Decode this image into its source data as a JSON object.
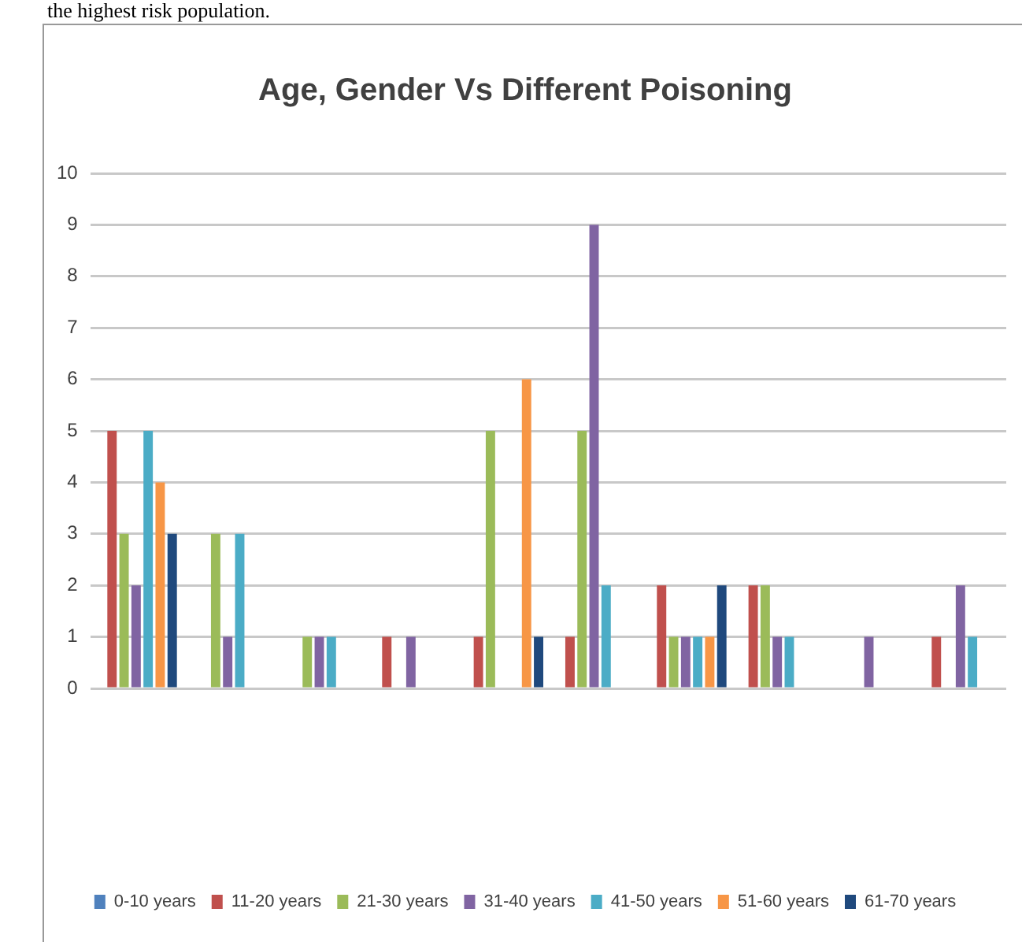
{
  "chart_data": {
    "type": "bar",
    "title": "Age, Gender Vs Different Poisoning",
    "annotations": [
      "the highest risk population."
    ],
    "categories": [
      null,
      null,
      null,
      null,
      null,
      null,
      null,
      null,
      null,
      null
    ],
    "series": [
      {
        "name": "0-10 years",
        "color": "#4f81bd",
        "values": [
          0,
          0,
          0,
          0,
          0,
          0,
          0,
          0,
          0,
          0
        ]
      },
      {
        "name": "11-20 years",
        "color": "#c0504d",
        "values": [
          5,
          0,
          0,
          1,
          1,
          1,
          2,
          2,
          0,
          1
        ]
      },
      {
        "name": "21-30 years",
        "color": "#9bbb59",
        "values": [
          3,
          3,
          1,
          0,
          5,
          5,
          1,
          2,
          0,
          0
        ]
      },
      {
        "name": "31-40 years",
        "color": "#8064a2",
        "values": [
          2,
          1,
          1,
          1,
          0,
          9,
          1,
          1,
          1,
          2
        ]
      },
      {
        "name": "41-50 years",
        "color": "#4bacc6",
        "values": [
          5,
          3,
          1,
          0,
          0,
          2,
          1,
          1,
          0,
          1
        ]
      },
      {
        "name": "51-60 years",
        "color": "#f79646",
        "values": [
          4,
          0,
          0,
          0,
          6,
          0,
          1,
          0,
          0,
          0
        ]
      },
      {
        "name": "61-70 years",
        "color": "#1f497d",
        "values": [
          3,
          0,
          0,
          0,
          1,
          0,
          2,
          0,
          0,
          0
        ]
      }
    ],
    "ylim": [
      0,
      10
    ],
    "yticks": [
      0,
      1,
      2,
      3,
      4,
      5,
      6,
      7,
      8,
      9,
      10
    ],
    "grid": "y",
    "legend": "bottom"
  }
}
